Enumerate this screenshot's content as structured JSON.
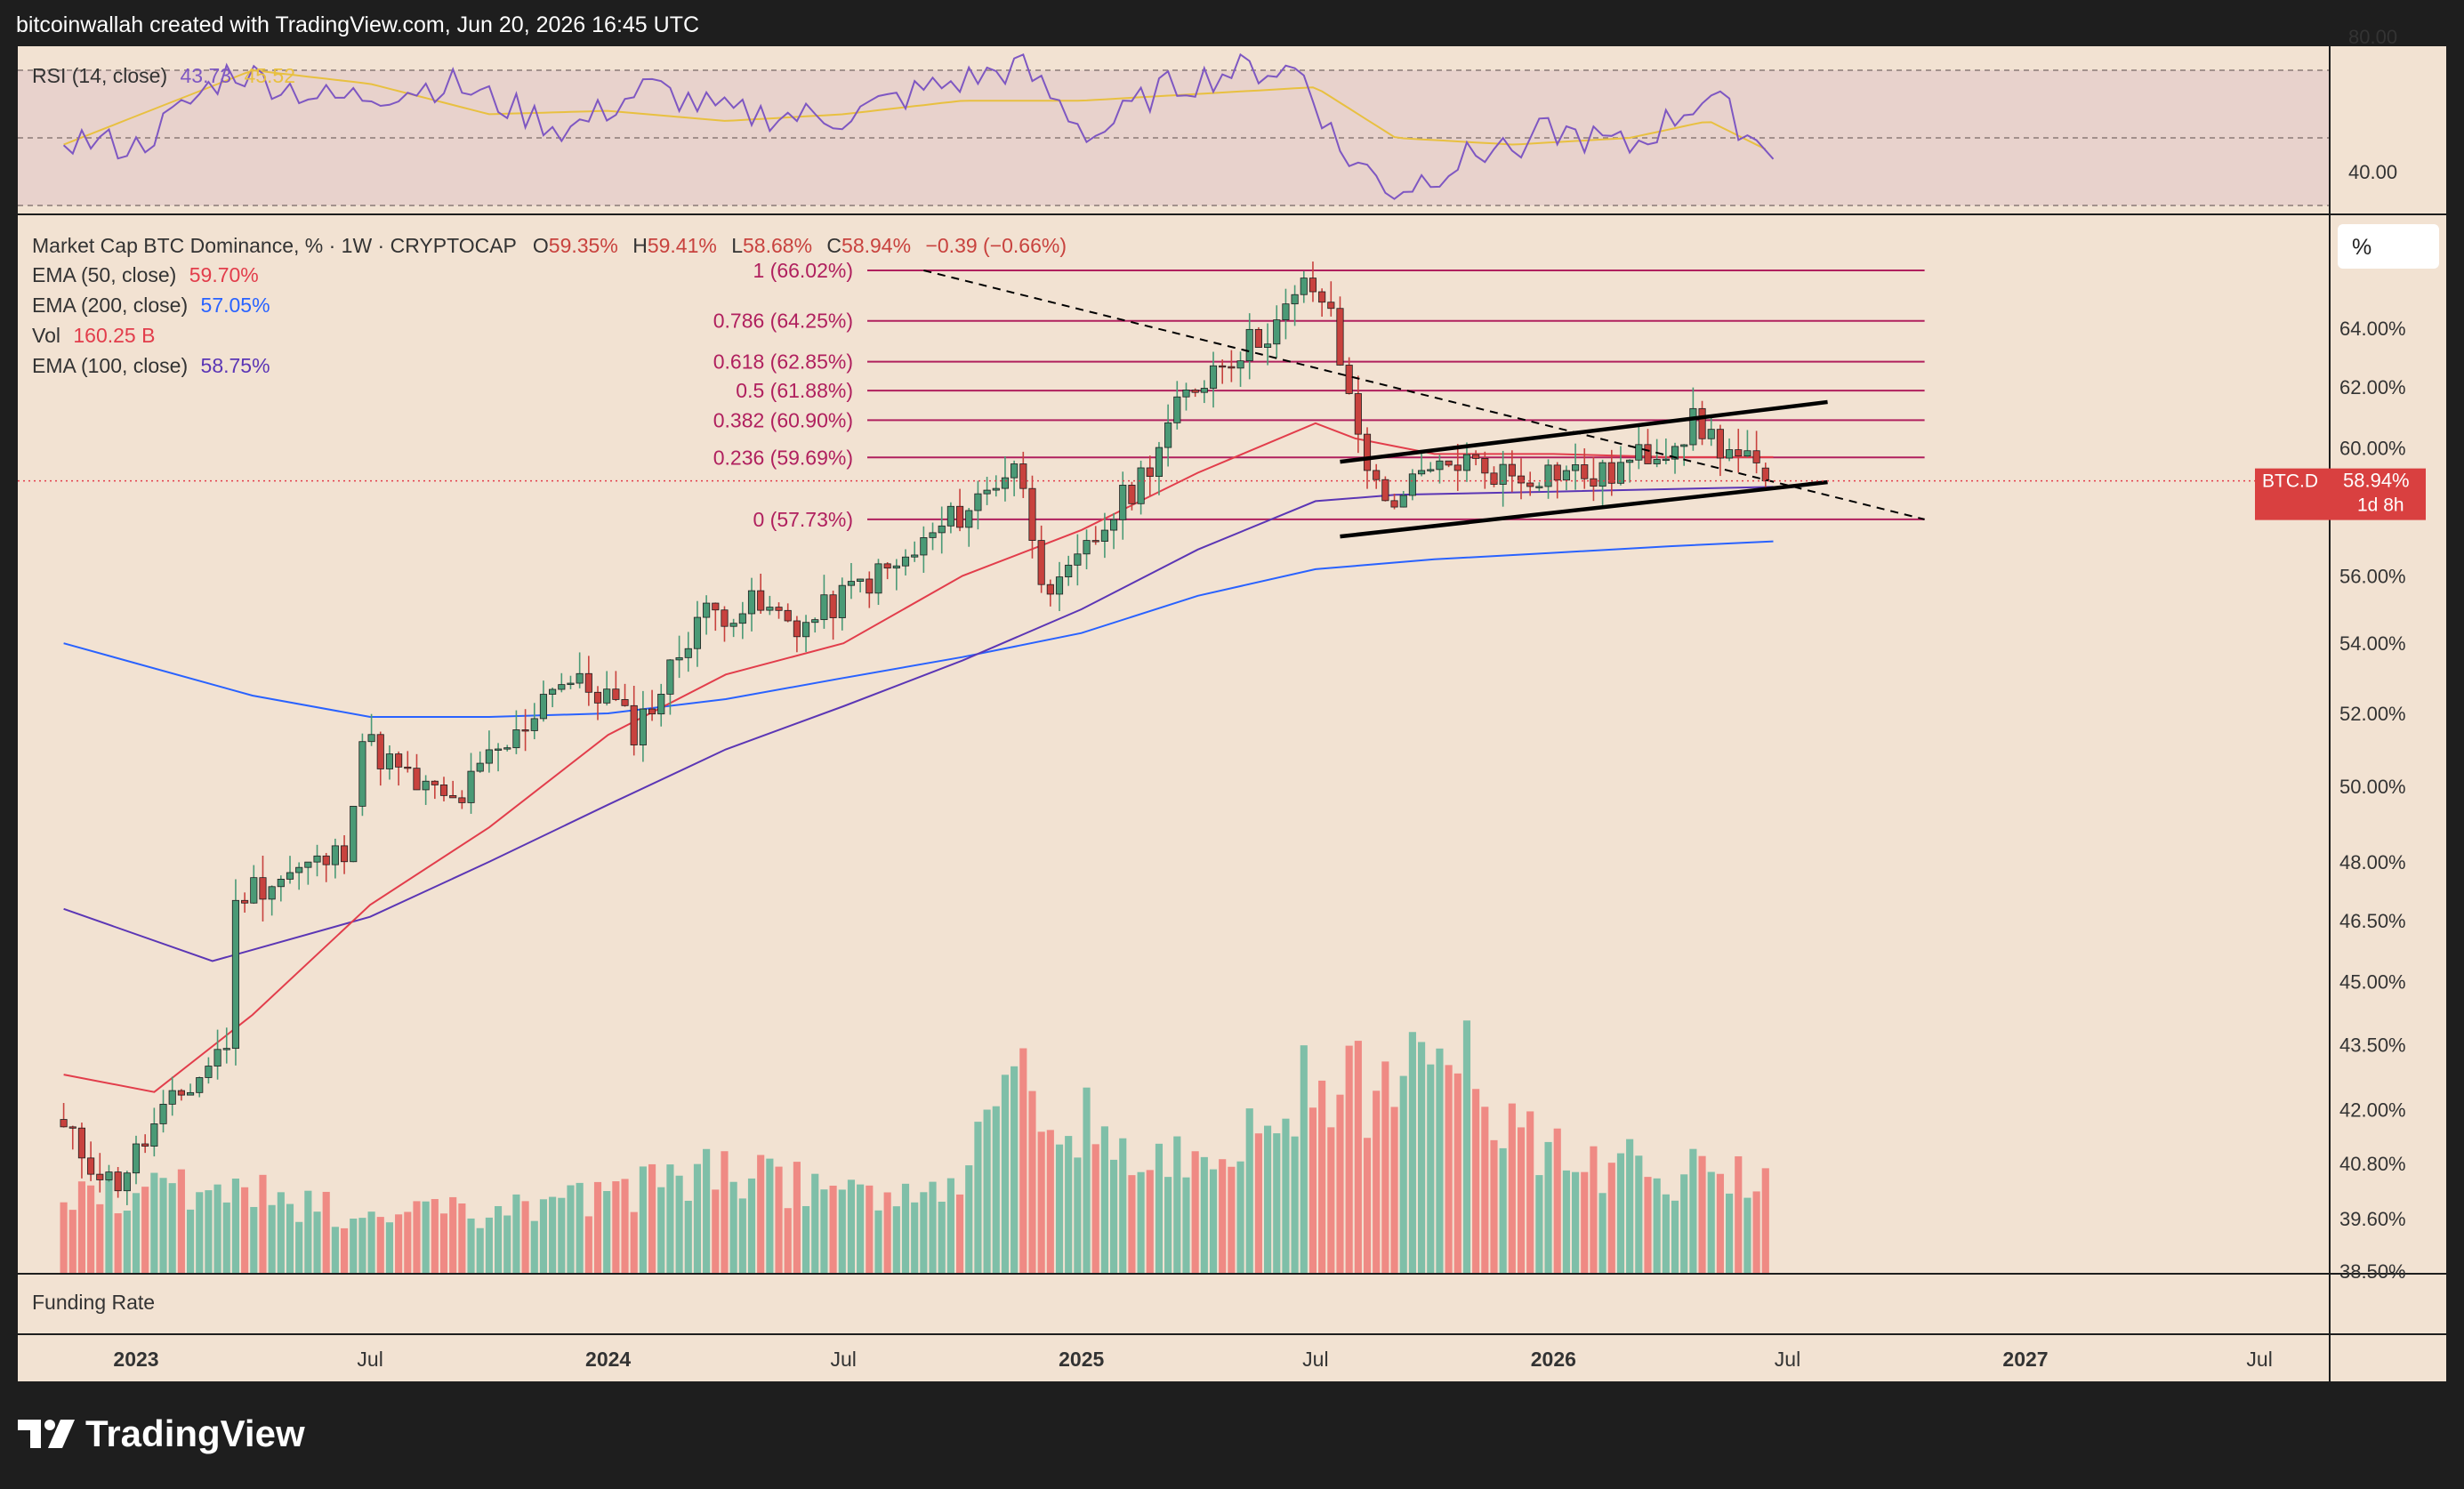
{
  "header": {
    "attribution": "bitcoinwallah created with TradingView.com, Jun 20, 2026 16:45 UTC"
  },
  "rsi": {
    "label": "RSI (14, close)",
    "value": "43.73",
    "sma_value": "45.52",
    "axis_labels": [
      "80.00",
      "40.00"
    ],
    "levels": [
      70,
      50,
      30
    ],
    "range": [
      20,
      80
    ]
  },
  "legend": {
    "symbol": "Market Cap BTC Dominance, % · 1W · CRYPTOCAP",
    "ohlc": {
      "open_label": "O",
      "open": "59.35%",
      "high_label": "H",
      "high": "59.41%",
      "low_label": "L",
      "low": "58.68%",
      "close_label": "C",
      "close": "58.94%",
      "change": "−0.39 (−0.66%)"
    },
    "indicators": [
      {
        "label": "EMA (50, close)",
        "value": "59.70%",
        "color": "#e23d4b"
      },
      {
        "label": "EMA (200, close)",
        "value": "57.05%",
        "color": "#2962ff"
      },
      {
        "label": "Vol",
        "value": "160.25 B",
        "color": "#e23d4b"
      },
      {
        "label": "EMA (100, close)",
        "value": "58.75%",
        "color": "#5b36b5"
      }
    ]
  },
  "price_axis": {
    "scale_button": "%",
    "labels": [
      "64.00%",
      "62.00%",
      "60.00%",
      "56.00%",
      "54.00%",
      "52.00%",
      "50.00%",
      "48.00%",
      "46.50%",
      "45.00%",
      "43.50%",
      "42.00%",
      "40.80%",
      "39.60%",
      "38.50%"
    ],
    "current_symbol": "BTC.D",
    "current_value": "58.94%",
    "countdown": "1d 8h"
  },
  "time_axis": {
    "labels": [
      "2023",
      "Jul",
      "2024",
      "Jul",
      "2025",
      "Jul",
      "2026",
      "Jul",
      "2027",
      "Jul"
    ]
  },
  "funding_pane": {
    "label": "Funding Rate"
  },
  "brand": {
    "name": "TradingView"
  },
  "colors": {
    "background": "#f2e2d2",
    "rsi_band": "#e8d2cc",
    "up_candle": "#4a9a76",
    "down_candle": "#c8423e",
    "fib_line": "#b0205e",
    "ema50": "#e23d4b",
    "ema100": "#5b36b5",
    "ema200": "#2962ff",
    "rsi_line": "#7e57c2",
    "rsi_ma": "#e8c040",
    "vol_up": "#7fbfa8",
    "vol_down": "#ef8a84"
  },
  "chart_data": {
    "type": "candlestick",
    "title": "Market Cap BTC Dominance, % · 1W · CRYPTOCAP",
    "x_range": [
      "2022-11-01",
      "2027-08-01"
    ],
    "y_range": [
      38.5,
      66.5
    ],
    "y_scale": "log",
    "fibonacci": [
      {
        "label": "1 (66.02%)",
        "value": 66.02
      },
      {
        "label": "0.786 (64.25%)",
        "value": 64.25
      },
      {
        "label": "0.618 (62.85%)",
        "value": 62.85
      },
      {
        "label": "0.5 (61.88%)",
        "value": 61.88
      },
      {
        "label": "0.382 (60.90%)",
        "value": 60.9
      },
      {
        "label": "0.236 (59.69%)",
        "value": 59.69
      },
      {
        "label": "0 (57.73%)",
        "value": 57.73
      }
    ],
    "fib_end_date": "2026-10-15",
    "trendlines": [
      {
        "style": "solid",
        "from": [
          "2025-07-20",
          59.55
        ],
        "to": [
          "2026-08-01",
          61.5
        ]
      },
      {
        "style": "solid",
        "from": [
          "2025-07-20",
          57.2
        ],
        "to": [
          "2026-08-01",
          58.9
        ]
      },
      {
        "style": "dashed",
        "from": [
          "2024-09-01",
          66.02
        ],
        "to": [
          "2026-10-15",
          57.73
        ]
      }
    ],
    "ohlc_anchor_dates": [
      "2022-11-06",
      "2022-12-15",
      "2023-01-20",
      "2023-02-20",
      "2023-03-12",
      "2023-03-20",
      "2023-05-01",
      "2023-06-10",
      "2023-06-25",
      "2023-08-01",
      "2023-09-05",
      "2023-10-01",
      "2023-10-20",
      "2023-11-20",
      "2024-01-01",
      "2024-01-20",
      "2024-02-10",
      "2024-03-10",
      "2024-04-20",
      "2024-06-01",
      "2024-07-15",
      "2024-08-15",
      "2024-09-10",
      "2024-10-20",
      "2024-11-10",
      "2024-12-01",
      "2024-12-15",
      "2025-01-20",
      "2025-02-15",
      "2025-03-20",
      "2025-04-15",
      "2025-05-05",
      "2025-06-05",
      "2025-06-25",
      "2025-07-10",
      "2025-07-25",
      "2025-08-20",
      "2025-09-20",
      "2025-10-20",
      "2025-12-01",
      "2026-01-05",
      "2026-02-05",
      "2026-03-01",
      "2026-04-01",
      "2026-04-20",
      "2026-05-15",
      "2026-06-20"
    ],
    "ohlc_anchor_values": [
      41.5,
      40.3,
      41.8,
      42.8,
      43.6,
      47.2,
      47.7,
      48.2,
      51.3,
      50.1,
      49.5,
      50.7,
      51.2,
      53.0,
      52.5,
      51.5,
      52.6,
      54.8,
      55.1,
      54.5,
      55.8,
      56.3,
      57.3,
      58.6,
      59.6,
      56.2,
      55.5,
      57.6,
      59.0,
      61.5,
      62.8,
      63.3,
      64.3,
      65.6,
      64.8,
      61.9,
      58.2,
      58.9,
      59.6,
      59.1,
      59.3,
      59.0,
      59.5,
      60.2,
      60.8,
      59.9,
      58.94
    ],
    "ema50_dates": [
      "2022-11-06",
      "2023-01-15",
      "2023-04-01",
      "2023-07-01",
      "2023-10-01",
      "2024-01-01",
      "2024-04-01",
      "2024-07-01",
      "2024-10-01",
      "2025-01-01",
      "2025-04-01",
      "2025-07-01",
      "2025-08-01",
      "2025-10-01",
      "2026-01-01",
      "2026-04-01",
      "2026-06-20"
    ],
    "ema50_values": [
      42.8,
      42.4,
      44.2,
      46.9,
      48.9,
      51.4,
      53.1,
      54.0,
      56.0,
      57.4,
      59.2,
      60.8,
      60.3,
      59.8,
      59.8,
      59.7,
      59.7
    ],
    "ema100_dates": [
      "2022-11-06",
      "2023-03-01",
      "2023-07-01",
      "2023-10-01",
      "2024-01-01",
      "2024-04-01",
      "2024-07-01",
      "2024-10-01",
      "2025-01-01",
      "2025-04-01",
      "2025-07-01",
      "2025-09-01",
      "2026-01-01",
      "2026-06-20"
    ],
    "ema100_values": [
      46.8,
      45.5,
      46.6,
      48.0,
      49.5,
      51.0,
      52.2,
      53.5,
      55.0,
      56.8,
      58.3,
      58.5,
      58.6,
      58.75
    ],
    "ema200_dates": [
      "2022-11-06",
      "2023-04-01",
      "2023-07-01",
      "2023-10-01",
      "2024-01-01",
      "2024-04-01",
      "2024-07-01",
      "2024-10-01",
      "2025-01-01",
      "2025-04-01",
      "2025-07-01",
      "2025-10-01",
      "2026-01-01",
      "2026-04-01",
      "2026-06-20"
    ],
    "ema200_values": [
      54.0,
      52.5,
      51.9,
      51.9,
      52.0,
      52.4,
      53.0,
      53.6,
      54.3,
      55.4,
      56.2,
      56.5,
      56.7,
      56.9,
      57.05
    ],
    "volume_max": 440,
    "volume_anchor_dates": [
      "2022-11-06",
      "2023-03-15",
      "2023-07-01",
      "2023-10-01",
      "2024-01-01",
      "2024-04-01",
      "2024-07-01",
      "2024-10-01",
      "2024-11-15",
      "2025-01-01",
      "2025-03-01",
      "2025-05-01",
      "2025-07-01",
      "2025-09-01",
      "2025-10-15",
      "2025-12-01",
      "2026-01-15",
      "2026-03-01",
      "2026-05-01",
      "2026-06-20"
    ],
    "volume_anchor_values": [
      135,
      150,
      100,
      110,
      140,
      180,
      140,
      170,
      340,
      270,
      180,
      230,
      340,
      310,
      420,
      250,
      200,
      190,
      170,
      160.25
    ],
    "rsi_anchor_dates": [
      "2022-11-06",
      "2023-01-01",
      "2023-03-15",
      "2023-06-01",
      "2023-09-01",
      "2023-12-01",
      "2024-02-01",
      "2024-04-01",
      "2024-07-01",
      "2024-09-01",
      "2024-11-15",
      "2025-01-10",
      "2025-03-01",
      "2025-05-01",
      "2025-06-20",
      "2025-07-20",
      "2025-09-01",
      "2025-11-01",
      "2026-01-01",
      "2026-03-01",
      "2026-05-01",
      "2026-06-20"
    ],
    "rsi_anchor_values": [
      50,
      47,
      70,
      61,
      66,
      52,
      65,
      57,
      56,
      64,
      71,
      50,
      64,
      70,
      70,
      46,
      34,
      45,
      52,
      47,
      63,
      43.73
    ],
    "rsi_ma_anchor_dates": [
      "2022-11-06",
      "2023-04-01",
      "2023-07-01",
      "2023-10-01",
      "2024-01-01",
      "2024-04-01",
      "2024-07-01",
      "2024-10-01",
      "2025-01-01",
      "2025-04-01",
      "2025-07-01",
      "2025-09-01",
      "2025-12-01",
      "2026-03-01",
      "2026-05-01",
      "2026-06-20"
    ],
    "rsi_ma_anchor_values": [
      48,
      70,
      66,
      57,
      58,
      55,
      57,
      61,
      61,
      63,
      65,
      50,
      48,
      50,
      55,
      45.52
    ]
  }
}
